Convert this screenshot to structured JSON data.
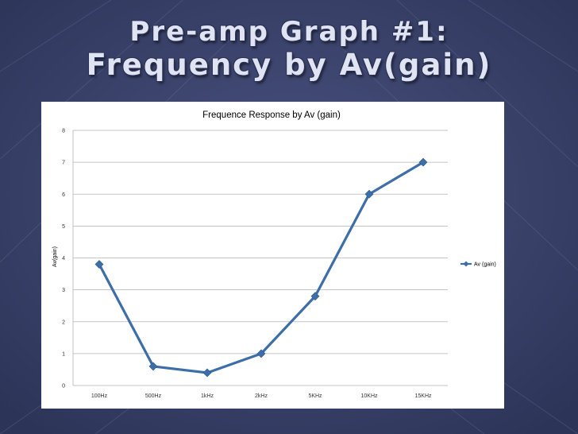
{
  "slide": {
    "title_line1": "Pre-amp Graph #1:",
    "title_line2": "Frequency by Av(gain)"
  },
  "colors": {
    "background": "#333c63",
    "series": "#3d6ea8",
    "grid": "#b3b3b3"
  },
  "chart_data": {
    "type": "line",
    "title": "Frequence Response by Av (gain)",
    "xlabel": "",
    "ylabel": "Av(gain)",
    "categories": [
      "100Hz",
      "500Hz",
      "1kHz",
      "2kHz",
      "5KHz",
      "10KHz",
      "15KHz"
    ],
    "yticks": [
      0,
      1,
      2,
      3,
      4,
      5,
      6,
      7,
      8
    ],
    "ylim": [
      0,
      8
    ],
    "grid": true,
    "legend": "right",
    "series": [
      {
        "name": "Av (gain)",
        "marker": "diamond",
        "values": [
          3.8,
          0.6,
          0.4,
          1.0,
          2.8,
          6.0,
          7.0
        ]
      }
    ]
  }
}
